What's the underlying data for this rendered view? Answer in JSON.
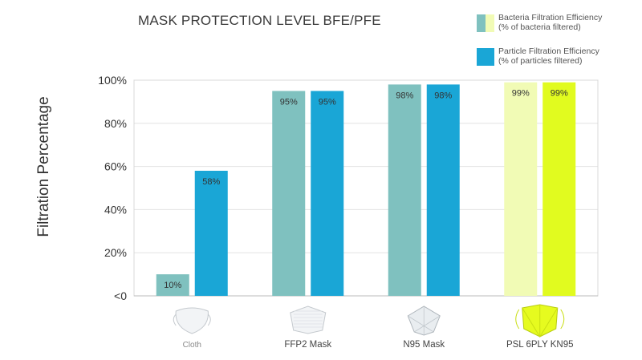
{
  "title": "MASK PROTECTION LEVEL BFE/PFE",
  "legend": [
    {
      "name": "Bacteria Filtration Efficiency",
      "sub": "(% of bacteria filtered)",
      "colors": [
        "#7fc1bf",
        "#f1fbb5"
      ]
    },
    {
      "name": "Particle Filtration Efficiency",
      "sub": "(% of particles filtered)",
      "colors": [
        "#1aa6d6"
      ]
    }
  ],
  "chart_data": {
    "type": "bar",
    "title": "MASK PROTECTION LEVEL BFE/PFE",
    "xlabel": "",
    "ylabel": "Filtration Percentage",
    "ylim": [
      0,
      100
    ],
    "ytick_labels": [
      "<0",
      "20%",
      "40%",
      "60%",
      "80%",
      "100%"
    ],
    "ytick_values": [
      0,
      20,
      40,
      60,
      80,
      100
    ],
    "grid": true,
    "legend_position": "top-right",
    "categories": [
      "Cloth",
      "FFP2 Mask",
      "N95 Mask",
      "PSL 6PLY KN95"
    ],
    "series": [
      {
        "name": "Bacteria Filtration Efficiency",
        "values": [
          10,
          95,
          98,
          99
        ],
        "labels": [
          "10%",
          "95%",
          "98%",
          "99%"
        ],
        "colors": [
          "#7fc1bf",
          "#7fc1bf",
          "#7fc1bf",
          "#f1fbb5"
        ]
      },
      {
        "name": "Particle Filtration Efficiency",
        "values": [
          58,
          95,
          98,
          99
        ],
        "labels": [
          "58%",
          "95%",
          "98%",
          "99%"
        ],
        "colors": [
          "#1aa6d6",
          "#1aa6d6",
          "#1aa6d6",
          "#e1fb1f"
        ]
      }
    ],
    "icons": [
      "cloth-mask-icon",
      "ffp2-mask-icon",
      "n95-mask-icon",
      "kn95-mask-icon"
    ]
  }
}
